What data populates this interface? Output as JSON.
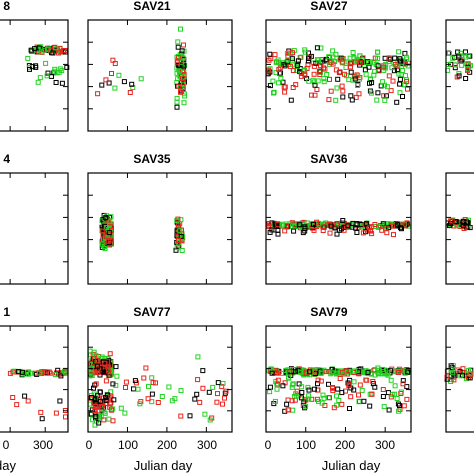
{
  "figure": {
    "panels": [
      {
        "title": "8"
      },
      {
        "title": "SAV21"
      },
      {
        "title": "SAV27"
      },
      {
        "title": ""
      },
      {
        "title": "4"
      },
      {
        "title": "SAV35"
      },
      {
        "title": "SAV36"
      },
      {
        "title": ""
      },
      {
        "title": "1"
      },
      {
        "title": "SAV77"
      },
      {
        "title": "SAV79"
      },
      {
        "title": ""
      }
    ],
    "xlabels": [
      "day",
      "Julian day",
      "Julian day"
    ]
  },
  "chart_data": {
    "type": "scatter",
    "layout": "3x4 grid of panels, cropped at left and right edges",
    "xlabel": "Julian day",
    "xlim": [
      0,
      365
    ],
    "xticks": [
      0,
      100,
      200,
      300
    ],
    "visible_tick_labels": [
      "0",
      "300",
      "0",
      "100",
      "200",
      "300",
      "0",
      "100",
      "200",
      "300"
    ],
    "series_colors": {
      "black": "#000000",
      "red": "#e8241e",
      "green": "#21d321"
    },
    "panels": [
      {
        "title": "8",
        "row": 0,
        "pattern": "dense band mid-upper, gap",
        "band_center": 0.73,
        "band_halfwidth": 0.05
      },
      {
        "title": "SAV21",
        "row": 0,
        "pattern": "sparse early, dense column near day 210-235",
        "band_center": 0.65
      },
      {
        "title": "SAV27",
        "row": 0,
        "pattern": "dense wide band all year",
        "band_center": 0.55,
        "band_halfwidth": 0.25
      },
      {
        "title": "",
        "row": 0,
        "pattern": "cropped, dense band",
        "band_center": 0.6
      },
      {
        "title": "4",
        "row": 1,
        "pattern": "cropped, empty"
      },
      {
        "title": "SAV35",
        "row": 1,
        "pattern": "two clusters near days 30-60 and 225-235",
        "band_center": 0.45
      },
      {
        "title": "SAV36",
        "row": 1,
        "pattern": "narrow band all year",
        "band_center": 0.53,
        "band_halfwidth": 0.04
      },
      {
        "title": "",
        "row": 1,
        "pattern": "cropped, narrow band",
        "band_center": 0.53
      },
      {
        "title": "1",
        "row": 2,
        "pattern": "cropped, narrow band",
        "band_center": 0.56
      },
      {
        "title": "SAV77",
        "row": 2,
        "pattern": "dense cluster days 0-60, sparse scatter afterwards",
        "band_center": 0.55
      },
      {
        "title": "SAV79",
        "row": 2,
        "pattern": "dense band all year with spread below",
        "band_center": 0.55,
        "band_halfwidth": 0.06
      },
      {
        "title": "",
        "row": 2,
        "pattern": "cropped, band",
        "band_center": 0.55
      }
    ]
  }
}
